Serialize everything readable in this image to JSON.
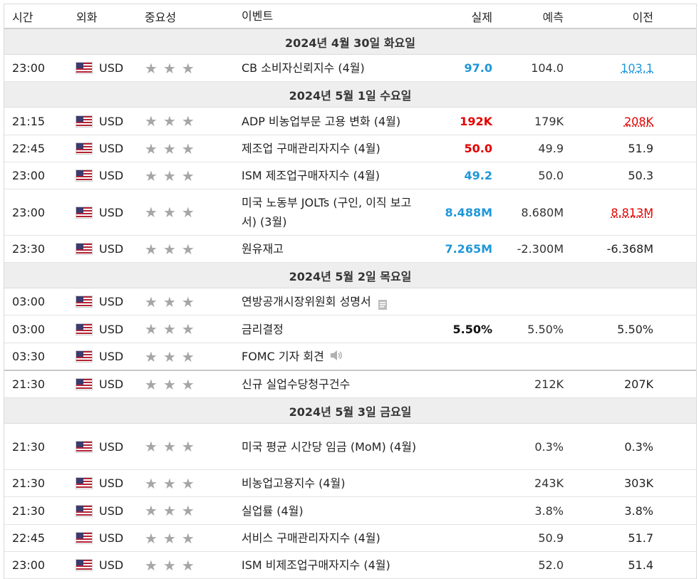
{
  "header": {
    "time": "시간",
    "currency": "외화",
    "importance": "중요성",
    "event": "이벤트",
    "actual": "실제",
    "forecast": "예측",
    "previous": "이전"
  },
  "icons": {
    "flag": "us-flag-icon",
    "star": "star-icon",
    "doc": "document-icon",
    "speaker": "speaker-icon"
  },
  "colors": {
    "positive": "#1f97d9",
    "negative": "#e30000",
    "star": "#a6a6a6",
    "date_bg": "#eeeeee"
  },
  "groups": [
    {
      "date": "2024년 4월 30일 화요일",
      "rows": [
        {
          "time": "23:00",
          "currency": "USD",
          "event": "CB 소비자신뢰지수 (4월)",
          "actual": "97.0",
          "actual_style": "blue",
          "forecast": "104.0",
          "previous": "103.1",
          "previous_style": "u-blue",
          "height": 38
        }
      ]
    },
    {
      "date": "2024년 5월 1일 수요일",
      "rows": [
        {
          "time": "21:15",
          "currency": "USD",
          "event": "ADP 비농업부문 고용 변화 (4월)",
          "actual": "192K",
          "actual_style": "red",
          "forecast": "179K",
          "previous": "208K",
          "previous_style": "u-red",
          "height": 39
        },
        {
          "time": "22:45",
          "currency": "USD",
          "event": "제조업 구매관리자지수 (4월)",
          "actual": "50.0",
          "actual_style": "red",
          "forecast": "49.9",
          "previous": "51.9",
          "previous_style": "",
          "height": 38
        },
        {
          "time": "23:00",
          "currency": "USD",
          "event": "ISM 제조업구매자지수 (4월)",
          "actual": "49.2",
          "actual_style": "blue",
          "forecast": "50.0",
          "previous": "50.3",
          "previous_style": "",
          "height": 38
        },
        {
          "time": "23:00",
          "currency": "USD",
          "event": "미국 노동부 JOLTs (구인, 이직 보고서) (3월)",
          "actual": "8.488M",
          "actual_style": "blue",
          "forecast": "8.680M",
          "previous": "8.813M",
          "previous_style": "u-red",
          "height": 65
        },
        {
          "time": "23:30",
          "currency": "USD",
          "event": "원유재고",
          "actual": "7.265M",
          "actual_style": "blue",
          "forecast": "-2.300M",
          "previous": "-6.368M",
          "previous_style": "",
          "height": 38
        }
      ]
    },
    {
      "date": "2024년 5월 2일 목요일",
      "rows": [
        {
          "time": "03:00",
          "currency": "USD",
          "event": "연방공개시장위원회 성명서",
          "icon": "doc",
          "actual": "",
          "actual_style": "",
          "forecast": "",
          "previous": "",
          "previous_style": "",
          "height": 38
        },
        {
          "time": "03:00",
          "currency": "USD",
          "event": "금리결정",
          "actual": "5.50%",
          "actual_style": "black",
          "forecast": "5.50%",
          "previous": "5.50%",
          "previous_style": "",
          "height": 39
        },
        {
          "time": "03:30",
          "currency": "USD",
          "event": "FOMC 기자 회견",
          "icon": "speaker",
          "actual": "",
          "actual_style": "",
          "forecast": "",
          "previous": "",
          "previous_style": "",
          "height": 39,
          "thick": true
        },
        {
          "time": "21:30",
          "currency": "USD",
          "event": "신규 실업수당청구건수",
          "actual": "",
          "actual_style": "",
          "forecast": "212K",
          "previous": "207K",
          "previous_style": "",
          "height": 38
        }
      ]
    },
    {
      "date": "2024년 5월 3일 금요일",
      "rows": [
        {
          "time": "21:30",
          "currency": "USD",
          "event": "미국 평균 시간당 임금 (MoM) (4월)",
          "actual": "",
          "actual_style": "",
          "forecast": "0.3%",
          "previous": "0.3%",
          "previous_style": "",
          "height": 65
        },
        {
          "time": "21:30",
          "currency": "USD",
          "event": "비농업고용지수 (4월)",
          "actual": "",
          "actual_style": "",
          "forecast": "243K",
          "previous": "303K",
          "previous_style": "",
          "height": 38
        },
        {
          "time": "21:30",
          "currency": "USD",
          "event": "실업률 (4월)",
          "actual": "",
          "actual_style": "",
          "forecast": "3.8%",
          "previous": "3.8%",
          "previous_style": "",
          "height": 39
        },
        {
          "time": "22:45",
          "currency": "USD",
          "event": "서비스 구매관리자지수 (4월)",
          "actual": "",
          "actual_style": "",
          "forecast": "50.9",
          "previous": "51.7",
          "previous_style": "",
          "height": 38
        },
        {
          "time": "23:00",
          "currency": "USD",
          "event": "ISM 비제조업구매자지수 (4월)",
          "actual": "",
          "actual_style": "",
          "forecast": "52.0",
          "previous": "51.4",
          "previous_style": "",
          "height": 38
        }
      ]
    }
  ]
}
